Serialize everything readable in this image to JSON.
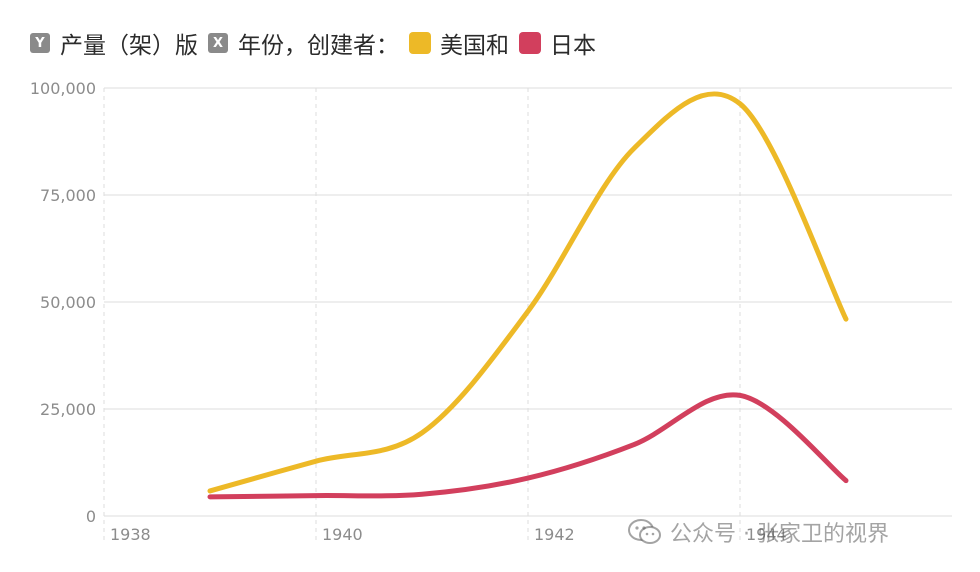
{
  "legend": {
    "y_badge": "Y",
    "y_text": "产量（架）版",
    "x_badge": "X",
    "x_text": "年份，创建者：",
    "series1_label": "美国和",
    "series2_label": "日本"
  },
  "watermark": {
    "icon": "wechat-icon",
    "text": "公众号 · 张家卫的视界"
  },
  "colors": {
    "series1": "#EDB927",
    "series2": "#D23F5D",
    "badge": "#8A8A8A",
    "grid": "#DDDDDD",
    "tick_text": "#8C8C8C"
  },
  "chart_data": {
    "type": "line",
    "x": [
      1939,
      1940,
      1941,
      1942,
      1943,
      1944,
      1945
    ],
    "series": [
      {
        "name": "美国和",
        "color": "#EDB927",
        "values": [
          5856,
          12804,
          19433,
          47836,
          85898,
          96318,
          46001
        ]
      },
      {
        "name": "日本",
        "color": "#D23F5D",
        "values": [
          4467,
          4768,
          5088,
          8861,
          16693,
          28180,
          8263
        ]
      }
    ],
    "x_ticks": [
      "1938",
      "1940",
      "1942",
      "1944"
    ],
    "x_tick_values": [
      1938,
      1940,
      1942,
      1944
    ],
    "y_ticks": [
      "0",
      "25,000",
      "50,000",
      "75,000",
      "100,000"
    ],
    "y_tick_values": [
      0,
      25000,
      50000,
      75000,
      100000
    ],
    "xlim": [
      1938,
      1946
    ],
    "ylim": [
      0,
      100000
    ],
    "grid": true,
    "legend_position": "top-left"
  }
}
